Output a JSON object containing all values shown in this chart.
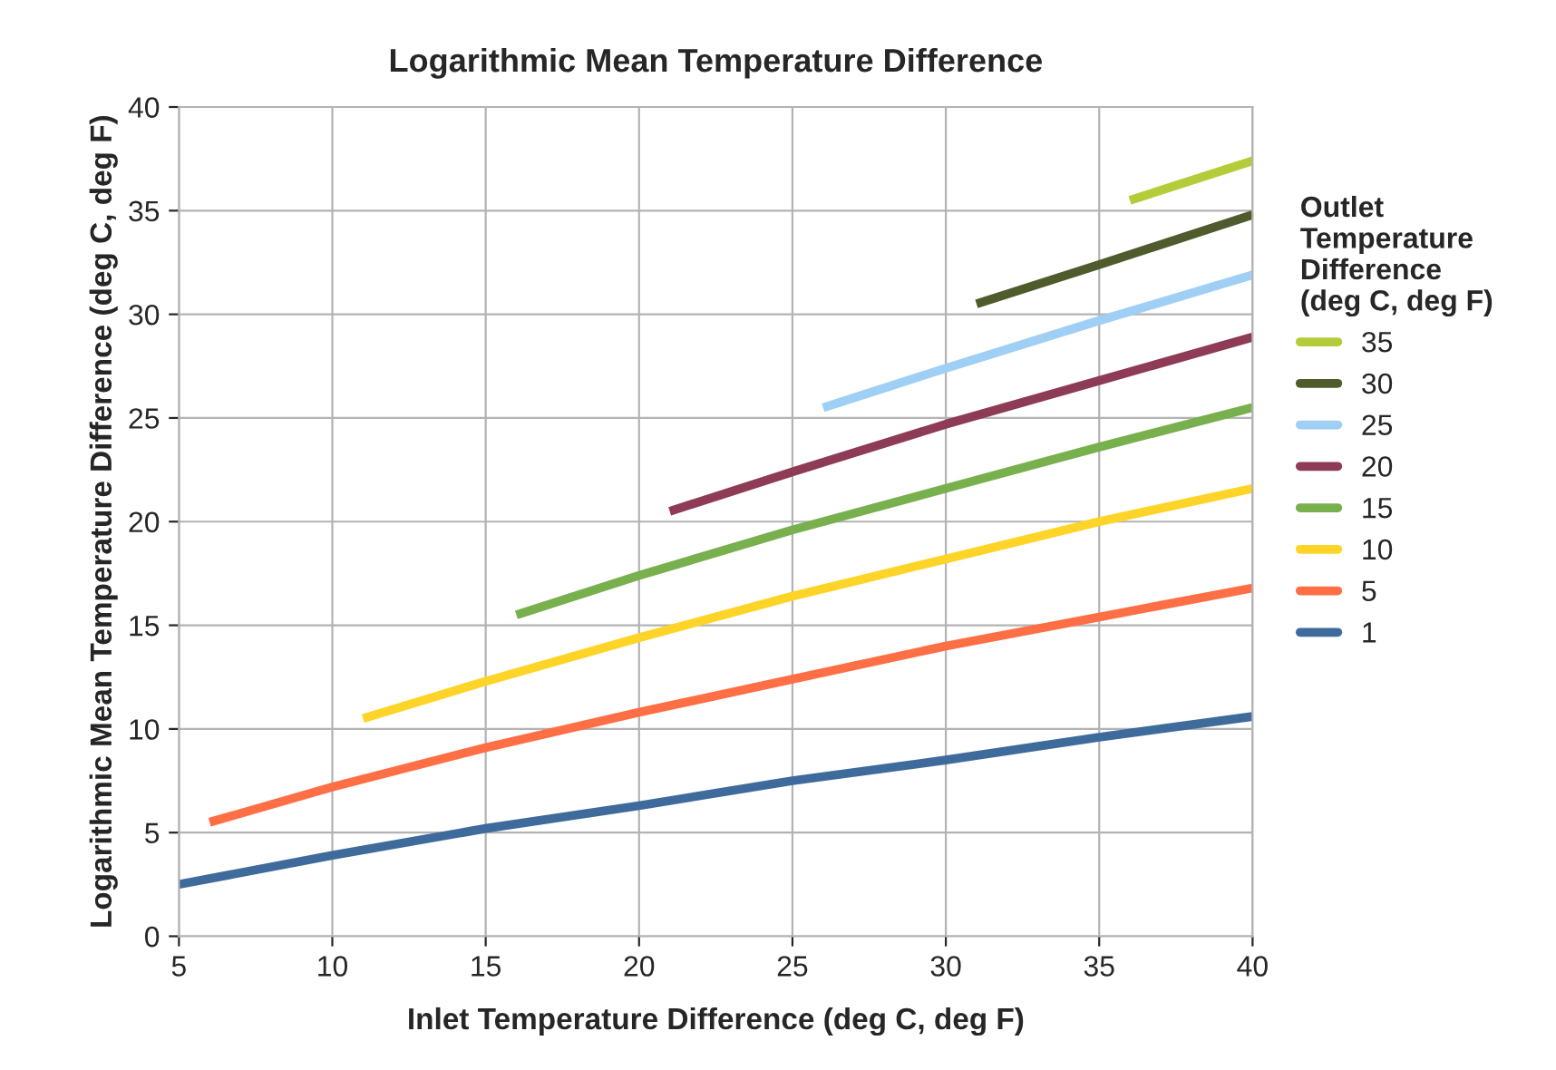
{
  "chart_data": {
    "type": "line",
    "title": "Logarithmic Mean Temperature Difference",
    "xlabel": "Inlet Temperature Difference (deg C, deg F)",
    "ylabel": "Logarithmic Mean Temperature Difference (deg C, deg F)",
    "legend_title": "Outlet\nTemperature\nDifference\n(deg C, deg F)",
    "series": [
      {
        "name": "35",
        "color": "#b4cc3a",
        "x": [
          36,
          40
        ],
        "values": [
          35.5,
          37.4
        ]
      },
      {
        "name": "30",
        "color": "#4f5b2c",
        "x": [
          31,
          35,
          40
        ],
        "values": [
          30.5,
          32.4,
          34.8
        ]
      },
      {
        "name": "25",
        "color": "#9fcff5",
        "x": [
          26,
          30,
          35,
          40
        ],
        "values": [
          25.5,
          27.4,
          29.7,
          31.9
        ]
      },
      {
        "name": "20",
        "color": "#8e3b55",
        "x": [
          21,
          25,
          30,
          35,
          40
        ],
        "values": [
          20.5,
          22.4,
          24.7,
          26.8,
          28.9
        ]
      },
      {
        "name": "15",
        "color": "#78b04e",
        "x": [
          16,
          20,
          25,
          30,
          35,
          40
        ],
        "values": [
          15.5,
          17.4,
          19.6,
          21.6,
          23.6,
          25.5
        ]
      },
      {
        "name": "10",
        "color": "#ffd428",
        "x": [
          11,
          15,
          20,
          25,
          30,
          35,
          40
        ],
        "values": [
          10.5,
          12.3,
          14.4,
          16.4,
          18.2,
          20.0,
          21.6
        ]
      },
      {
        "name": "5",
        "color": "#ff6f45",
        "x": [
          6,
          10,
          15,
          20,
          25,
          30,
          35,
          40
        ],
        "values": [
          5.5,
          7.2,
          9.1,
          10.8,
          12.4,
          14.0,
          15.4,
          16.8
        ]
      },
      {
        "name": "1",
        "color": "#3f6b9c",
        "x": [
          5,
          10,
          15,
          20,
          25,
          30,
          35,
          40
        ],
        "values": [
          2.5,
          3.9,
          5.2,
          6.3,
          7.5,
          8.5,
          9.6,
          10.6
        ]
      }
    ],
    "xlim": [
      5,
      40
    ],
    "xticks": [
      5,
      10,
      15,
      20,
      25,
      30,
      35,
      40
    ],
    "ylim": [
      0,
      40
    ],
    "yticks": [
      0,
      5,
      10,
      15,
      20,
      25,
      30,
      35,
      40
    ],
    "grid": true,
    "legend": "right",
    "line_style": "solid",
    "marker": "none"
  }
}
